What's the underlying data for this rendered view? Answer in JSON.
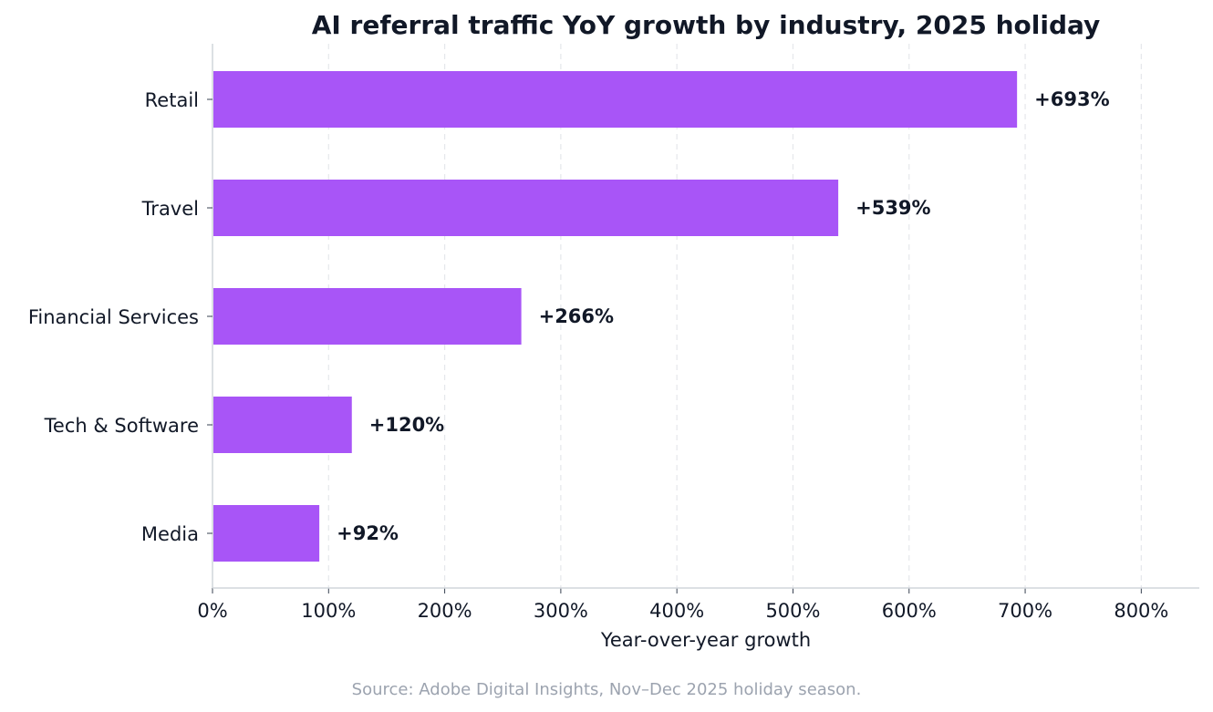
{
  "chart_data": {
    "type": "bar",
    "orientation": "horizontal",
    "title": "AI referral traffic YoY growth by industry, 2025 holiday",
    "xlabel": "Year-over-year growth",
    "ylabel": "",
    "categories": [
      "Retail",
      "Travel",
      "Financial Services",
      "Tech & Software",
      "Media"
    ],
    "values": [
      693,
      539,
      266,
      120,
      92
    ],
    "data_labels": [
      "+693%",
      "+539%",
      "+266%",
      "+120%",
      "+92%"
    ],
    "xlim": [
      0,
      850
    ],
    "x_ticks": [
      0,
      100,
      200,
      300,
      400,
      500,
      600,
      700,
      800
    ],
    "x_tick_labels": [
      "0%",
      "100%",
      "200%",
      "300%",
      "400%",
      "500%",
      "600%",
      "700%",
      "800%"
    ],
    "grid": "vertical dashed",
    "bar_color": "#a855f7",
    "source_note": "Source: Adobe Digital Insights, Nov–Dec 2025 holiday season."
  }
}
